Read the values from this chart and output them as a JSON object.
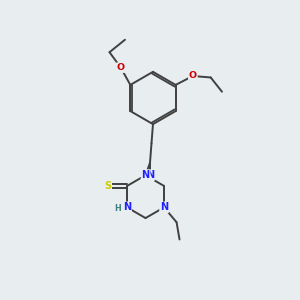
{
  "background_color": "#e8edf0",
  "bond_color": "#404040",
  "figsize": [
    3.0,
    3.0
  ],
  "dpi": 100,
  "atom_colors": {
    "N": "#2020ff",
    "O": "#cc0000",
    "S": "#cccc00",
    "H": "#408080",
    "C": "#404040"
  },
  "xlim": [
    0,
    10
  ],
  "ylim": [
    0,
    10
  ]
}
